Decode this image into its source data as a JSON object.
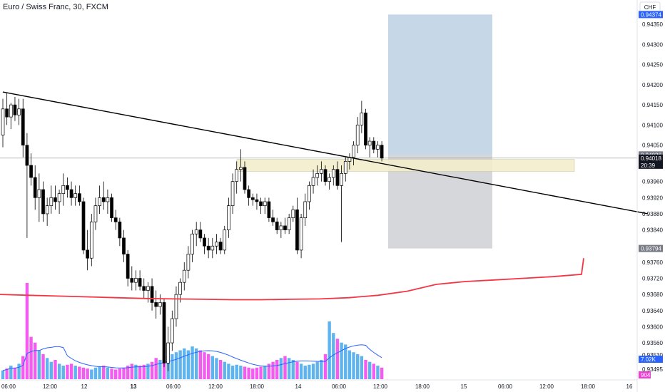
{
  "header": {
    "title": "Euro / Swiss Franc, 30, FXCM"
  },
  "axis": {
    "currency": "CHF",
    "price_ticks": [
      "0.94350",
      "0.94300",
      "0.94250",
      "0.94200",
      "0.94150",
      "0.94100",
      "0.94050",
      "0.93960",
      "0.93920",
      "0.93880",
      "0.93840",
      "0.93760",
      "0.93720",
      "0.93680",
      "0.93640",
      "0.93600",
      "0.93560",
      "0.93530",
      "0.93495"
    ],
    "time_ticks": [
      "06:00",
      "12:00",
      "12",
      "13",
      "06:00",
      "12:00",
      "18:00",
      "14",
      "06:00",
      "12:00",
      "18:00",
      "15",
      "06:00",
      "12:00",
      "18:00",
      "16"
    ],
    "current_price": "0.94018",
    "countdown": "20:39",
    "badge_top": "0.94374",
    "badge_grey_top": "0.94026",
    "badge_grey_bottom": "0.93794",
    "volume_badge": "7.02K",
    "volume_badge_2": "904"
  },
  "colors": {
    "up": "#ffffff",
    "down": "#000000",
    "ma_red": "#f23645",
    "volume_pink": "#f25cf0",
    "volume_blue": "#5fb4ee",
    "volume_ma": "#2962ff",
    "target_zone": "#bcd0e4",
    "stop_zone": "#cfd0d3",
    "supply_zone": "#f3eecb",
    "badge_blue": "#2962ff",
    "badge_grey": "#787b86",
    "badge_pink": "#f23cd6"
  },
  "chart_data": {
    "type": "candlestick",
    "symbol": "EURCHF",
    "timeframe": "30",
    "price_range": [
      0.9347,
      0.9441
    ],
    "candles": [
      [
        0.94075,
        0.94165,
        0.94045,
        0.9414
      ],
      [
        0.9414,
        0.9418,
        0.941,
        0.9412
      ],
      [
        0.9412,
        0.94155,
        0.9409,
        0.9415
      ],
      [
        0.9415,
        0.9417,
        0.9411,
        0.94125
      ],
      [
        0.94125,
        0.94165,
        0.941,
        0.9414
      ],
      [
        0.9414,
        0.94165,
        0.9402,
        0.9405
      ],
      [
        0.9405,
        0.9408,
        0.9382,
        0.94
      ],
      [
        0.94,
        0.9403,
        0.9395,
        0.9397
      ],
      [
        0.9397,
        0.94,
        0.9389,
        0.9392
      ],
      [
        0.9392,
        0.9398,
        0.9386,
        0.9394
      ],
      [
        0.9394,
        0.9396,
        0.9386,
        0.9388
      ],
      [
        0.9388,
        0.9392,
        0.9385,
        0.939
      ],
      [
        0.939,
        0.9395,
        0.9388,
        0.9392
      ],
      [
        0.9392,
        0.9395,
        0.9389,
        0.9391
      ],
      [
        0.9391,
        0.9394,
        0.9388,
        0.9393
      ],
      [
        0.9393,
        0.9398,
        0.939,
        0.9395
      ],
      [
        0.9395,
        0.9397,
        0.9392,
        0.9394
      ],
      [
        0.9394,
        0.9396,
        0.939,
        0.9392
      ],
      [
        0.9392,
        0.9395,
        0.939,
        0.9393
      ],
      [
        0.9393,
        0.9395,
        0.939,
        0.9391
      ],
      [
        0.9391,
        0.9392,
        0.9378,
        0.9379
      ],
      [
        0.9379,
        0.9384,
        0.9374,
        0.9377
      ],
      [
        0.9377,
        0.9388,
        0.9375,
        0.9386
      ],
      [
        0.9386,
        0.9392,
        0.9384,
        0.939
      ],
      [
        0.939,
        0.9395,
        0.9388,
        0.9392
      ],
      [
        0.9392,
        0.9396,
        0.9389,
        0.9391
      ],
      [
        0.9391,
        0.9394,
        0.9388,
        0.9392
      ],
      [
        0.9392,
        0.9393,
        0.9386,
        0.9387
      ],
      [
        0.9387,
        0.9389,
        0.9384,
        0.9386
      ],
      [
        0.9386,
        0.9387,
        0.938,
        0.9382
      ],
      [
        0.9382,
        0.9384,
        0.9376,
        0.9378
      ],
      [
        0.9378,
        0.9379,
        0.937,
        0.9372
      ],
      [
        0.9372,
        0.9375,
        0.9369,
        0.9371
      ],
      [
        0.9371,
        0.9374,
        0.9369,
        0.9372
      ],
      [
        0.9372,
        0.9374,
        0.9369,
        0.937
      ],
      [
        0.937,
        0.9372,
        0.9367,
        0.9369
      ],
      [
        0.9369,
        0.9371,
        0.9366,
        0.937
      ],
      [
        0.937,
        0.9372,
        0.9364,
        0.9366
      ],
      [
        0.9366,
        0.9369,
        0.9362,
        0.9365
      ],
      [
        0.9365,
        0.9368,
        0.9363,
        0.9366
      ],
      [
        0.9366,
        0.9367,
        0.935,
        0.9351
      ],
      [
        0.9351,
        0.936,
        0.9349,
        0.9356
      ],
      [
        0.9356,
        0.9364,
        0.9354,
        0.9362
      ],
      [
        0.9362,
        0.937,
        0.936,
        0.9368
      ],
      [
        0.9368,
        0.9372,
        0.9366,
        0.9371
      ],
      [
        0.9371,
        0.9376,
        0.9369,
        0.9374
      ],
      [
        0.9374,
        0.938,
        0.9372,
        0.9378
      ],
      [
        0.9378,
        0.9384,
        0.9376,
        0.9383
      ],
      [
        0.9383,
        0.9386,
        0.938,
        0.9384
      ],
      [
        0.9384,
        0.9386,
        0.9381,
        0.9382
      ],
      [
        0.9382,
        0.9383,
        0.9378,
        0.938
      ],
      [
        0.938,
        0.9382,
        0.9377,
        0.9379
      ],
      [
        0.9379,
        0.9382,
        0.9377,
        0.938
      ],
      [
        0.938,
        0.9383,
        0.9378,
        0.9381
      ],
      [
        0.9381,
        0.9382,
        0.9378,
        0.9379
      ],
      [
        0.9379,
        0.9385,
        0.9378,
        0.9384
      ],
      [
        0.9384,
        0.9392,
        0.9382,
        0.939
      ],
      [
        0.939,
        0.9398,
        0.9388,
        0.9396
      ],
      [
        0.9396,
        0.9401,
        0.9393,
        0.9399
      ],
      [
        0.9399,
        0.9404,
        0.9396,
        0.93995
      ],
      [
        0.93995,
        0.9401,
        0.9393,
        0.9394
      ],
      [
        0.9394,
        0.9395,
        0.939,
        0.9392
      ],
      [
        0.9392,
        0.9393,
        0.939,
        0.93915
      ],
      [
        0.93915,
        0.9393,
        0.9389,
        0.9391
      ],
      [
        0.9391,
        0.9392,
        0.9388,
        0.939
      ],
      [
        0.939,
        0.9392,
        0.9388,
        0.9391
      ],
      [
        0.9391,
        0.9392,
        0.9386,
        0.9387
      ],
      [
        0.9387,
        0.9389,
        0.9385,
        0.9386
      ],
      [
        0.9386,
        0.9387,
        0.9383,
        0.9384
      ],
      [
        0.9384,
        0.9386,
        0.9382,
        0.9385
      ],
      [
        0.9385,
        0.9387,
        0.9383,
        0.9384
      ],
      [
        0.9384,
        0.9388,
        0.9383,
        0.9387
      ],
      [
        0.9387,
        0.939,
        0.9386,
        0.9389
      ],
      [
        0.9389,
        0.9392,
        0.9378,
        0.9379
      ],
      [
        0.9379,
        0.9388,
        0.9377,
        0.9387
      ],
      [
        0.9387,
        0.9393,
        0.9385,
        0.9391
      ],
      [
        0.9391,
        0.9396,
        0.9389,
        0.9395
      ],
      [
        0.9395,
        0.9399,
        0.9393,
        0.9397
      ],
      [
        0.9397,
        0.94,
        0.9395,
        0.9398
      ],
      [
        0.9398,
        0.9401,
        0.9396,
        0.9399
      ],
      [
        0.9399,
        0.94,
        0.9395,
        0.9396
      ],
      [
        0.9396,
        0.9398,
        0.9394,
        0.9397
      ],
      [
        0.9397,
        0.94,
        0.9395,
        0.9399
      ],
      [
        0.9399,
        0.9401,
        0.9394,
        0.9395
      ],
      [
        0.9395,
        0.94,
        0.9381,
        0.9398
      ],
      [
        0.9398,
        0.9402,
        0.9396,
        0.9401
      ],
      [
        0.9401,
        0.9403,
        0.9399,
        0.9402
      ],
      [
        0.9402,
        0.9406,
        0.94,
        0.9405
      ],
      [
        0.9405,
        0.9412,
        0.9403,
        0.941
      ],
      [
        0.941,
        0.9416,
        0.9408,
        0.9413
      ],
      [
        0.9413,
        0.9414,
        0.9404,
        0.9405
      ],
      [
        0.9405,
        0.9407,
        0.9402,
        0.9406
      ],
      [
        0.9406,
        0.9407,
        0.9403,
        0.9404
      ],
      [
        0.9404,
        0.9406,
        0.9402,
        0.9405
      ],
      [
        0.9405,
        0.9406,
        0.9401,
        0.94018
      ]
    ],
    "volume": [
      90,
      110,
      140,
      120,
      160,
      240,
      1000,
      440,
      380,
      300,
      260,
      220,
      180,
      200,
      160,
      140,
      150,
      160,
      140,
      130,
      120,
      110,
      100,
      120,
      130,
      140,
      120,
      110,
      100,
      110,
      120,
      140,
      160,
      150,
      140,
      150,
      160,
      180,
      220,
      200,
      230,
      240,
      260,
      280,
      300,
      320,
      300,
      340,
      320,
      300,
      280,
      260,
      240,
      220,
      200,
      180,
      160,
      140,
      150,
      140,
      130,
      120,
      110,
      120,
      130,
      140,
      160,
      180,
      200,
      220,
      240,
      220,
      200,
      180,
      160,
      140,
      150,
      160,
      180,
      200,
      260,
      600,
      480,
      420,
      380,
      360,
      300,
      280,
      260,
      240,
      200,
      180,
      160,
      140,
      120
    ],
    "trendline": {
      "from": [
        0,
        0.94182
      ],
      "to": [
        160,
        0.9388
      ]
    },
    "sma_red": [
      0.9368,
      0.93678,
      0.93676,
      0.93674,
      0.93672,
      0.9367,
      0.93669,
      0.93668,
      0.93667,
      0.93667,
      0.93668,
      0.93669,
      0.93672,
      0.93678,
      0.93688,
      0.93705,
      0.93712,
      0.93716,
      0.9372,
      0.93724,
      0.9373,
      0.9377
    ],
    "zones": {
      "target": [
        0.94374,
        0.94026
      ],
      "stop": [
        0.94026,
        0.93794
      ],
      "supply": [
        0.94015,
        0.93985
      ]
    }
  }
}
